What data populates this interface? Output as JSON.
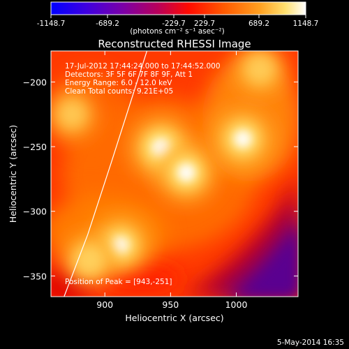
{
  "chart_data": {
    "type": "heatmap",
    "title": "Reconstructed RHESSI Image",
    "xlabel": "Heliocentric X (arcsec)",
    "ylabel": "Heliocentric Y (arcsec)",
    "x_ticks": [
      900,
      950,
      1000
    ],
    "y_ticks": [
      -200,
      -250,
      -300,
      -350
    ],
    "xlim": [
      859,
      1047
    ],
    "ylim": [
      -366,
      -176
    ],
    "colorbar": {
      "ticks": [
        "-1148.7",
        "-689.2",
        "-229.7",
        "229.7",
        "689.2",
        "1148.7"
      ],
      "range": [
        -1148.7,
        1148.7
      ],
      "unit_label": "(photons cm⁻² s⁻¹ asec⁻²)",
      "colors": [
        "#0000ff",
        "#5a00c8",
        "#8f0090",
        "#c8003a",
        "#ff1e00",
        "#ff7a00",
        "#ffd23c",
        "#ffffff"
      ]
    },
    "info_lines": [
      "17-Jul-2012 17:44:24.000 to 17:44:52.000",
      "Detectors: 3F 5F 6F 7F 8F 9F, Att 1",
      "Energy Range: 6.0 - 12.0 keV",
      "Clean    Total counts: 9.21E+05"
    ],
    "peak_text": "Position of Peak = [943,-251]",
    "sources": [
      {
        "x": 943,
        "y": -251,
        "level": 1.0
      },
      {
        "x": 962,
        "y": -270,
        "level": 0.92
      },
      {
        "x": 1005,
        "y": -244,
        "level": 0.9
      },
      {
        "x": 912,
        "y": -326,
        "level": 0.85
      },
      {
        "x": 888,
        "y": -338,
        "level": 0.7
      },
      {
        "x": 875,
        "y": -225,
        "level": 0.55
      },
      {
        "x": 1018,
        "y": -190,
        "level": 0.6
      }
    ],
    "limb": [
      [
        932,
        -176
      ],
      [
        905,
        -262
      ],
      [
        887,
        -318
      ],
      [
        869,
        -366
      ]
    ],
    "footer_date": "5-May-2014 16:35"
  }
}
